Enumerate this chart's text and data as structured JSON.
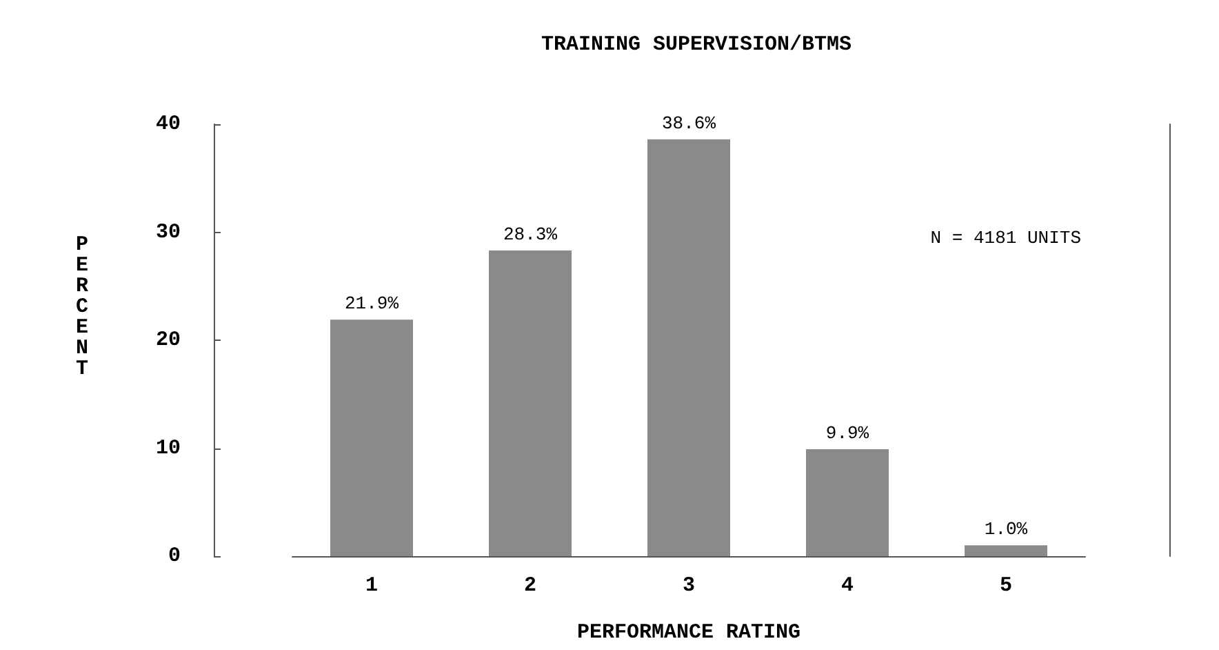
{
  "chart_data": {
    "type": "bar",
    "title": "TRAINING SUPERVISION/BTMS",
    "xlabel": "PERFORMANCE RATING",
    "ylabel": "PERCENT",
    "categories": [
      "1",
      "2",
      "3",
      "4",
      "5"
    ],
    "values": [
      21.9,
      28.3,
      38.6,
      9.9,
      1.0
    ],
    "value_labels": [
      "21.9%",
      "28.3%",
      "38.6%",
      "9.9%",
      "1.0%"
    ],
    "color": "#8a8a8a",
    "ylim": [
      0,
      40
    ],
    "yticks": [
      0,
      10,
      20,
      30,
      40
    ],
    "grid": false,
    "annotations": [
      "N = 4181 UNITS"
    ]
  }
}
